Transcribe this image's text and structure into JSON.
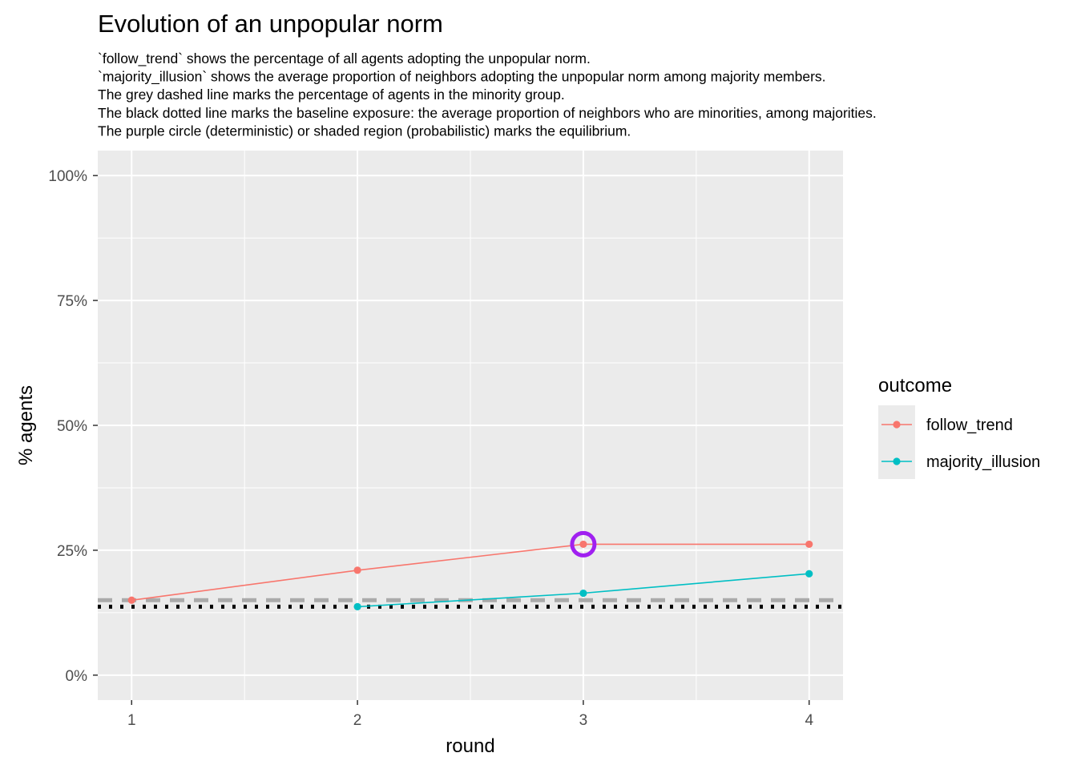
{
  "chart_data": {
    "type": "line",
    "title": "Evolution of an unpopular norm",
    "subtitle_lines": [
      "`follow_trend` shows the percentage of all agents adopting the unpopular norm.",
      "`majority_illusion` shows the average proportion of neighbors adopting the unpopular norm among majority members.",
      "The grey dashed line marks the percentage of agents in the minority group.",
      "The black dotted line marks the baseline exposure: the average proportion of neighbors who are minorities, among majorities.",
      "The purple circle (deterministic) or shaded region (probabilistic) marks the equilibrium."
    ],
    "xlabel": "round",
    "ylabel": "% agents",
    "x_ticks": [
      1,
      2,
      3,
      4
    ],
    "x_tick_labels": [
      "1",
      "2",
      "3",
      "4"
    ],
    "xlim": [
      0.85,
      4.15
    ],
    "y_ticks": [
      0,
      0.25,
      0.5,
      0.75,
      1.0
    ],
    "y_tick_labels": [
      "0%",
      "25%",
      "50%",
      "75%",
      "100%"
    ],
    "ylim": [
      -0.05,
      1.05
    ],
    "grid": true,
    "legend": {
      "title": "outcome",
      "placement": "right"
    },
    "series": [
      {
        "name": "follow_trend",
        "color": "#F8766D",
        "x": [
          1,
          2,
          3,
          4
        ],
        "values": [
          0.15,
          0.21,
          0.262,
          0.262
        ]
      },
      {
        "name": "majority_illusion",
        "color": "#00BFC4",
        "x": [
          2,
          3,
          4
        ],
        "values": [
          0.137,
          0.164,
          0.203
        ]
      }
    ],
    "reference_lines": [
      {
        "kind": "minority-share",
        "style": "dashed",
        "color": "#AAAAAA",
        "y": 0.15
      },
      {
        "kind": "baseline-exposure",
        "style": "dotted",
        "color": "#000000",
        "y": 0.137
      }
    ],
    "equilibrium_marker": {
      "x": 3,
      "y": 0.262,
      "color": "#A020F0"
    }
  }
}
